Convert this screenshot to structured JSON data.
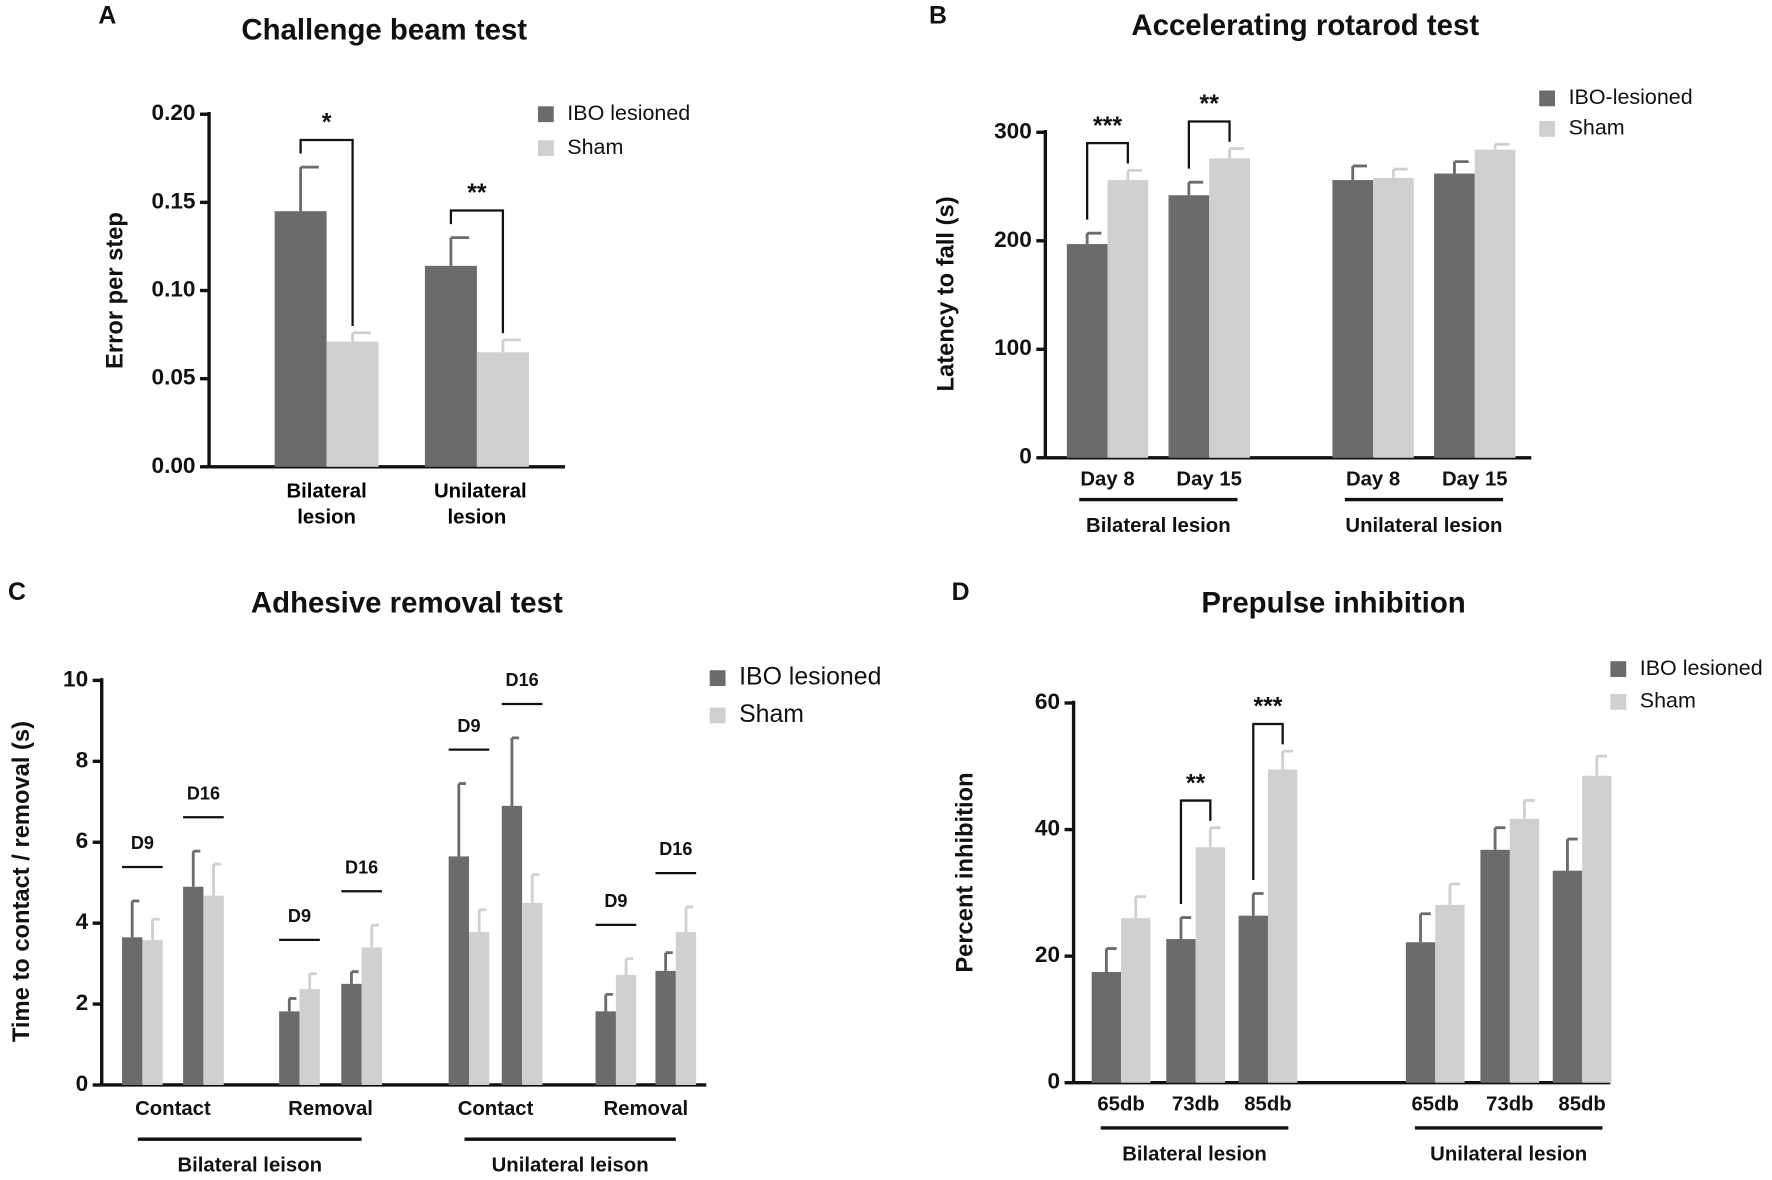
{
  "chart_data": [
    {
      "type": "bar",
      "panel": "A",
      "title": "Challenge beam test",
      "ylabel": "Error per step",
      "categories": [
        "Bilateral lesion",
        "Unilateral lesion"
      ],
      "series": [
        {
          "name": "IBO lesioned",
          "color": "#6b6b6b",
          "values": [
            0.145,
            0.114
          ],
          "errors": [
            0.025,
            0.016
          ]
        },
        {
          "name": "Sham",
          "color": "#d0d0d0",
          "values": [
            0.071,
            0.065
          ],
          "errors": [
            0.005,
            0.007
          ]
        }
      ],
      "significance": [
        "*",
        "**"
      ],
      "ylim": [
        0,
        0.2
      ],
      "yticks": [
        {
          "value": 0,
          "label": "0.00"
        },
        {
          "value": 0.05,
          "label": "0.05"
        },
        {
          "value": 0.1,
          "label": "0.10"
        },
        {
          "value": 0.15,
          "label": "0.15"
        },
        {
          "value": 0.2,
          "label": "0.20"
        }
      ]
    },
    {
      "type": "bar",
      "panel": "B",
      "title": "Accelerating rotarod test",
      "ylabel": "Latency to fall (s)",
      "groups": [
        {
          "label": "Bilateral lesion",
          "categories": [
            "Day 8",
            "Day 15"
          ]
        },
        {
          "label": "Unilateral lesion",
          "categories": [
            "Day 8",
            "Day 15"
          ]
        }
      ],
      "series": [
        {
          "name": "IBO-lesioned",
          "color": "#6b6b6b",
          "values": [
            197,
            242,
            256,
            262
          ],
          "errors": [
            10,
            12,
            13,
            11
          ]
        },
        {
          "name": "Sham",
          "color": "#d0d0d0",
          "values": [
            256,
            276,
            258,
            284
          ],
          "errors": [
            9,
            9,
            8,
            5
          ]
        }
      ],
      "significance": [
        "***",
        "**",
        null,
        null
      ],
      "ylim": [
        0,
        300
      ],
      "yticks": [
        0,
        100,
        200,
        300
      ]
    },
    {
      "type": "bar",
      "panel": "C",
      "title": "Adhesive removal test",
      "ylabel": "Time to contact / removal (s)",
      "groups": [
        {
          "label": "Bilateral leison",
          "subgroups": [
            {
              "label": "Contact",
              "categories": [
                "D9",
                "D16"
              ]
            },
            {
              "label": "Removal",
              "categories": [
                "D9",
                "D16"
              ]
            }
          ]
        },
        {
          "label": "Unilateral leison",
          "subgroups": [
            {
              "label": "Contact",
              "categories": [
                "D9",
                "D16"
              ]
            },
            {
              "label": "Removal",
              "categories": [
                "D9",
                "D16"
              ]
            }
          ]
        }
      ],
      "series": [
        {
          "name": "IBO lesioned",
          "color": "#6b6b6b",
          "values": [
            3.65,
            4.9,
            1.82,
            2.5,
            5.65,
            6.9,
            1.82,
            2.82
          ],
          "errors": [
            0.9,
            0.88,
            0.32,
            0.3,
            1.8,
            1.68,
            0.42,
            0.45
          ]
        },
        {
          "name": "Sham",
          "color": "#d0d0d0",
          "values": [
            3.58,
            4.68,
            2.37,
            3.4,
            3.78,
            4.5,
            2.72,
            3.78
          ],
          "errors": [
            0.52,
            0.78,
            0.38,
            0.55,
            0.55,
            0.7,
            0.4,
            0.62
          ]
        }
      ],
      "ylim": [
        0,
        10
      ],
      "yticks": [
        0,
        2,
        4,
        6,
        8,
        10
      ]
    },
    {
      "type": "bar",
      "panel": "D",
      "title": "Prepulse inhibition",
      "ylabel": "Percent inhibition",
      "groups": [
        {
          "label": "Bilateral lesion",
          "categories": [
            "65db",
            "73db",
            "85db"
          ]
        },
        {
          "label": "Unilateral lesion",
          "categories": [
            "65db",
            "73db",
            "85db"
          ]
        }
      ],
      "series": [
        {
          "name": "IBO lesioned",
          "color": "#6b6b6b",
          "values": [
            17.5,
            22.7,
            26.4,
            22.2,
            36.8,
            33.5
          ],
          "errors": [
            3.7,
            3.4,
            3.5,
            4.5,
            3.5,
            5
          ]
        },
        {
          "name": "Sham",
          "color": "#d0d0d0",
          "values": [
            26,
            37.2,
            49.5,
            28.1,
            41.7,
            48.5
          ],
          "errors": [
            3.4,
            3.1,
            2.9,
            3.3,
            2.9,
            3.1
          ]
        }
      ],
      "significance": [
        null,
        "**",
        "***",
        null,
        null,
        null
      ],
      "ylim": [
        0,
        60
      ],
      "yticks": [
        0,
        20,
        40,
        60
      ]
    }
  ]
}
